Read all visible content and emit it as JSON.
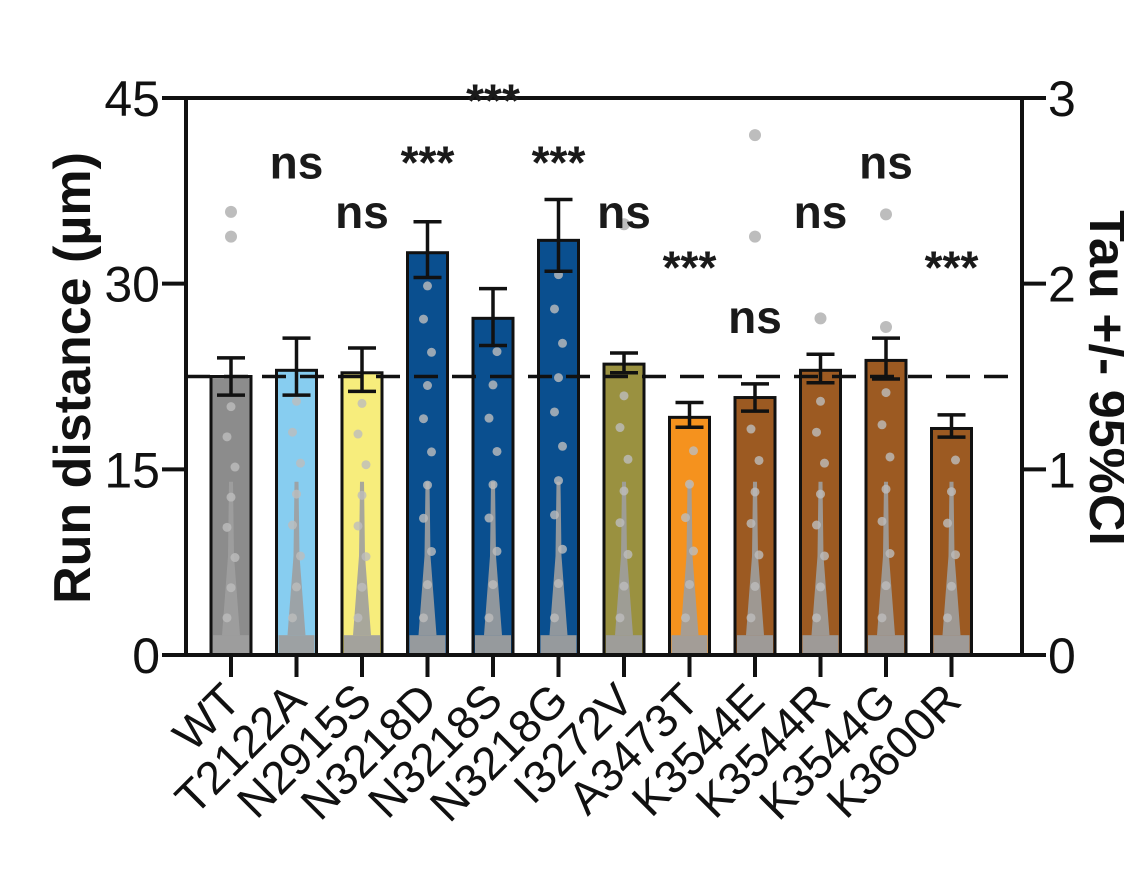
{
  "chart_data": {
    "type": "bar",
    "ylabel": "Run distance (µm)",
    "ylabel2": "Tau +/- 95%CI",
    "ylim": [
      0,
      45
    ],
    "ylim2": [
      0,
      3
    ],
    "yticks": [
      "0",
      "15",
      "30",
      "45"
    ],
    "yticks2": [
      "0",
      "1",
      "2",
      "3"
    ],
    "reference_line_y": 22.5,
    "categories": [
      "WT",
      "T2122A",
      "N2915S",
      "N3218D",
      "N3218S",
      "N3218G",
      "I3272V",
      "A3473T",
      "K3544E",
      "K3544R",
      "K3544G",
      "K3600R"
    ],
    "values": [
      22.5,
      23.0,
      22.8,
      32.5,
      27.2,
      33.5,
      23.5,
      19.2,
      20.8,
      23.0,
      23.8,
      18.3
    ],
    "error_low": [
      21.0,
      21.0,
      21.3,
      30.5,
      25.0,
      31.0,
      22.8,
      18.4,
      19.7,
      22.0,
      22.3,
      17.6
    ],
    "error_high": [
      24.0,
      25.6,
      24.8,
      35.0,
      29.6,
      36.8,
      24.4,
      20.4,
      21.9,
      24.3,
      25.6,
      19.4
    ],
    "significance": [
      "",
      "ns",
      "ns",
      "***",
      "***",
      "***",
      "ns",
      "***",
      "ns",
      "ns",
      "ns",
      "***"
    ],
    "significance_y": [
      0,
      38.5,
      34.5,
      38.5,
      43.5,
      38.5,
      34.5,
      30.0,
      26.0,
      34.5,
      38.5,
      30.0
    ],
    "colors": [
      "#8c8c8c",
      "#87cdf0",
      "#f7ed7c",
      "#0a4f8f",
      "#0a4f8f",
      "#0a4f8f",
      "#9a9140",
      "#f5921e",
      "#9c5a22",
      "#9c5a22",
      "#9c5a22",
      "#9c5a22"
    ],
    "outlier_points": [
      {
        "bar": 0,
        "values": [
          35.8,
          33.8
        ]
      },
      {
        "bar": 6,
        "values": [
          34.8
        ]
      },
      {
        "bar": 8,
        "values": [
          42.0,
          33.8
        ]
      },
      {
        "bar": 9,
        "values": [
          27.2
        ]
      },
      {
        "bar": 10,
        "values": [
          35.6,
          26.5
        ]
      }
    ],
    "point_color": "#bdbdbd",
    "grid": false,
    "legend": "none"
  }
}
